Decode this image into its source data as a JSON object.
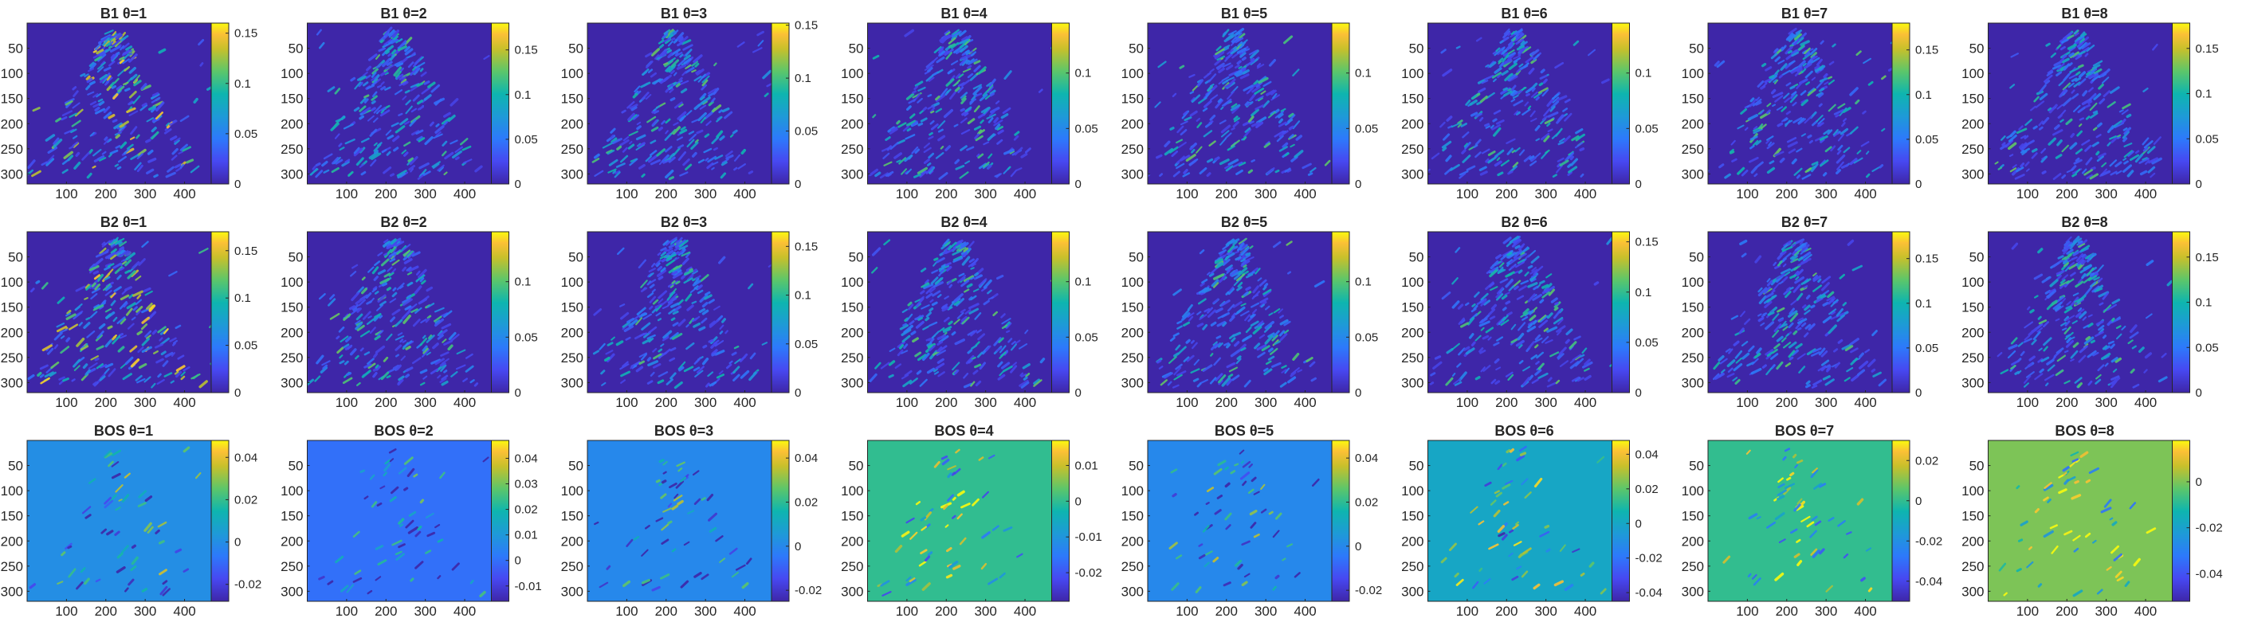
{
  "colors": {
    "colormap": "parula",
    "axis": "#262626",
    "cmap_low": "#3e26a8",
    "cmap_high": "#f9fb0e"
  },
  "chart_data": {
    "type": "heatmap",
    "layout": "3 rows x 8 columns grid of image plots, each with a vertical colorbar on its right",
    "shared_axes": {
      "x_ticks": [
        "100",
        "200",
        "300",
        "400"
      ],
      "y_ticks": [
        "50",
        "100",
        "150",
        "200",
        "250",
        "300"
      ],
      "xlim": [
        0,
        490
      ],
      "ylim_top_to_bottom": [
        0,
        320
      ]
    },
    "rows": [
      {
        "label": "B1",
        "titles": [
          "B1 θ=1",
          "B1 θ=2",
          "B1 θ=3",
          "B1 θ=4",
          "B1 θ=5",
          "B1 θ=6",
          "B1 θ=7",
          "B1 θ=8"
        ],
        "background": "low",
        "colorbars": [
          {
            "min": 0,
            "max": 0.16,
            "ticks": [
              "0",
              "0.05",
              "0.1",
              "0.15"
            ]
          },
          {
            "min": 0,
            "max": 0.18,
            "ticks": [
              "0",
              "0.05",
              "0.1",
              "0.15"
            ]
          },
          {
            "min": 0,
            "max": 0.152,
            "ticks": [
              "0",
              "0.05",
              "0.1",
              "0.15"
            ]
          },
          {
            "min": 0,
            "max": 0.145,
            "ticks": [
              "0",
              "0.05",
              "0.1"
            ]
          },
          {
            "min": 0,
            "max": 0.145,
            "ticks": [
              "0",
              "0.05",
              "0.1"
            ]
          },
          {
            "min": 0,
            "max": 0.145,
            "ticks": [
              "0",
              "0.05",
              "0.1"
            ]
          },
          {
            "min": 0,
            "max": 0.18,
            "ticks": [
              "0",
              "0.05",
              "0.1",
              "0.15"
            ]
          },
          {
            "min": 0,
            "max": 0.178,
            "ticks": [
              "0",
              "0.05",
              "0.1",
              "0.15"
            ]
          }
        ]
      },
      {
        "label": "B2",
        "titles": [
          "B2 θ=1",
          "B2 θ=2",
          "B2 θ=3",
          "B2 θ=4",
          "B2 θ=5",
          "B2 θ=6",
          "B2 θ=7",
          "B2 θ=8"
        ],
        "background": "low",
        "colorbars": [
          {
            "min": 0,
            "max": 0.17,
            "ticks": [
              "0",
              "0.05",
              "0.1",
              "0.15"
            ]
          },
          {
            "min": 0,
            "max": 0.145,
            "ticks": [
              "0",
              "0.05",
              "0.1"
            ]
          },
          {
            "min": 0,
            "max": 0.165,
            "ticks": [
              "0",
              "0.05",
              "0.1",
              "0.15"
            ]
          },
          {
            "min": 0,
            "max": 0.145,
            "ticks": [
              "0",
              "0.05",
              "0.1"
            ]
          },
          {
            "min": 0,
            "max": 0.145,
            "ticks": [
              "0",
              "0.05",
              "0.1"
            ]
          },
          {
            "min": 0,
            "max": 0.16,
            "ticks": [
              "0",
              "0.05",
              "0.1",
              "0.15"
            ]
          },
          {
            "min": 0,
            "max": 0.18,
            "ticks": [
              "0",
              "0.05",
              "0.1",
              "0.15"
            ]
          },
          {
            "min": 0,
            "max": 0.178,
            "ticks": [
              "0",
              "0.05",
              "0.1",
              "0.15"
            ]
          }
        ]
      },
      {
        "label": "BOS",
        "titles": [
          "BOS θ=1",
          "BOS θ=2",
          "BOS θ=3",
          "BOS θ=4",
          "BOS θ=5",
          "BOS θ=6",
          "BOS θ=7",
          "BOS θ=8"
        ],
        "background": "mid",
        "colorbars": [
          {
            "min": -0.028,
            "max": 0.048,
            "ticks": [
              "-0.02",
              "0",
              "0.02",
              "0.04"
            ],
            "background_value": 0
          },
          {
            "min": -0.016,
            "max": 0.047,
            "ticks": [
              "-0.01",
              "0",
              "0.01",
              "0.02",
              "0.03",
              "0.04"
            ],
            "background_value": 0
          },
          {
            "min": -0.025,
            "max": 0.048,
            "ticks": [
              "-0.02",
              "0",
              "0.02",
              "0.04"
            ],
            "background_value": 0
          },
          {
            "min": -0.028,
            "max": 0.017,
            "ticks": [
              "-0.02",
              "-0.01",
              "0",
              "0.01"
            ],
            "background_value": 0
          },
          {
            "min": -0.025,
            "max": 0.048,
            "ticks": [
              "-0.02",
              "0",
              "0.02",
              "0.04"
            ],
            "background_value": 0
          },
          {
            "min": -0.045,
            "max": 0.048,
            "ticks": [
              "-0.04",
              "-0.02",
              "0",
              "0.02",
              "0.04"
            ],
            "background_value": 0
          },
          {
            "min": -0.05,
            "max": 0.03,
            "ticks": [
              "-0.04",
              "-0.02",
              "0",
              "0.02"
            ],
            "background_value": 0
          },
          {
            "min": -0.052,
            "max": 0.018,
            "ticks": [
              "-0.04",
              "-0.02",
              "0"
            ],
            "background_value": 0
          }
        ]
      }
    ]
  }
}
